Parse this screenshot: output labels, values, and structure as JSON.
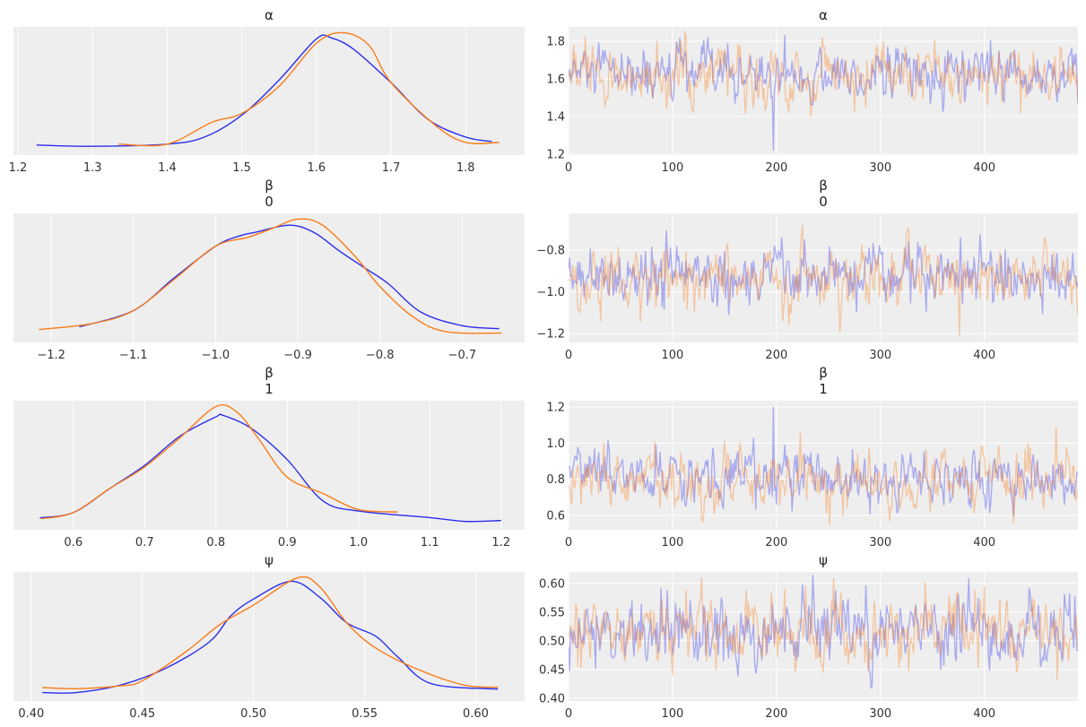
{
  "chart_data": {
    "type": "line",
    "style": {
      "panel_bg": "#eeeeee",
      "grid": "#ffffff",
      "grid_on": true,
      "chain_colors": [
        "#2a2eec",
        "#fa7c17"
      ],
      "trace_alpha": 0.35
    },
    "rows": [
      {
        "title": [
          "α"
        ],
        "kde": {
          "xlim": [
            1.194,
            1.879
          ],
          "xticks": [
            1.2,
            1.3,
            1.4,
            1.5,
            1.6,
            1.7,
            1.8
          ],
          "tick_labels": [
            "1.2",
            "1.3",
            "1.4",
            "1.5",
            "1.6",
            "1.7",
            "1.8"
          ],
          "y_units": "relative density",
          "chains": [
            {
              "x": [
                1.225,
                1.3,
                1.4,
                1.45,
                1.5,
                1.55,
                1.6,
                1.62,
                1.65,
                1.7,
                1.75,
                1.8,
                1.835
              ],
              "y": [
                0.015,
                0.004,
                0.023,
                0.085,
                0.277,
                0.585,
                0.946,
                0.954,
                0.854,
                0.562,
                0.238,
                0.085,
                0.046
              ]
            },
            {
              "x": [
                1.335,
                1.4,
                1.46,
                1.5,
                1.55,
                1.6,
                1.635,
                1.67,
                1.7,
                1.76,
                1.8,
                1.845
              ],
              "y": [
                0.023,
                0.023,
                0.215,
                0.292,
                0.531,
                0.908,
                1.0,
                0.892,
                0.562,
                0.185,
                0.038,
                0.038
              ]
            }
          ]
        },
        "trace": {
          "xlim": [
            0,
            490
          ],
          "xticks": [
            0,
            100,
            200,
            300,
            400
          ],
          "x_tick_labels": [
            "0",
            "100",
            "200",
            "300",
            "400"
          ],
          "ylim": [
            1.195,
            1.876
          ],
          "yticks": [
            1.2,
            1.4,
            1.6,
            1.8
          ],
          "y_tick_labels": [
            "1.2",
            "1.4",
            "1.6",
            "1.8"
          ],
          "chains": [
            {
              "mean": 1.62,
              "sd": 0.075,
              "spike": {
                "draw": 197,
                "value": 1.22
              }
            },
            {
              "mean": 1.615,
              "sd": 0.08
            }
          ]
        }
      },
      {
        "title": [
          "β",
          "0"
        ],
        "kde": {
          "xlim": [
            -1.246,
            -0.624
          ],
          "xticks": [
            -1.2,
            -1.1,
            -1.0,
            -0.9,
            -0.8,
            -0.7
          ],
          "tick_labels": [
            "−1.2",
            "−1.1",
            "−1.0",
            "−0.9",
            "−0.8",
            "−0.7"
          ],
          "y_units": "relative density",
          "chains": [
            {
              "x": [
                -1.166,
                -1.1,
                -1.05,
                -1.0,
                -0.97,
                -0.95,
                -0.91,
                -0.88,
                -0.85,
                -0.82,
                -0.79,
                -0.75,
                -0.7,
                -0.655
              ],
              "y": [
                0.063,
                0.204,
                0.491,
                0.765,
                0.856,
                0.888,
                0.948,
                0.883,
                0.726,
                0.582,
                0.439,
                0.19,
                0.073,
                0.047
              ]
            },
            {
              "x": [
                -1.215,
                -1.15,
                -1.1,
                -1.05,
                -1.0,
                -0.96,
                -0.93,
                -0.9,
                -0.87,
                -0.83,
                -0.8,
                -0.76,
                -0.72,
                -0.652
              ],
              "y": [
                0.039,
                0.091,
                0.204,
                0.478,
                0.765,
                0.843,
                0.922,
                1.0,
                0.948,
                0.674,
                0.413,
                0.151,
                0.021,
                0.008
              ]
            }
          ]
        },
        "trace": {
          "xlim": [
            0,
            490
          ],
          "xticks": [
            0,
            100,
            200,
            300,
            400
          ],
          "x_tick_labels": [
            "0",
            "100",
            "200",
            "300",
            "400"
          ],
          "ylim": [
            -1.243,
            -0.624
          ],
          "yticks": [
            -1.2,
            -1.0,
            -0.8
          ],
          "y_tick_labels": [
            "−1.2",
            "−1.0",
            "−0.8"
          ],
          "chains": [
            {
              "mean": -0.925,
              "sd": 0.075
            },
            {
              "mean": -0.93,
              "sd": 0.08,
              "spike": {
                "draw": 376,
                "value": -1.21
              }
            }
          ]
        }
      },
      {
        "title": [
          "β",
          "1"
        ],
        "kde": {
          "xlim": [
            0.516,
            1.233
          ],
          "xticks": [
            0.6,
            0.7,
            0.8,
            0.9,
            1.0,
            1.1,
            1.2
          ],
          "tick_labels": [
            "0.6",
            "0.7",
            "0.8",
            "0.9",
            "1.0",
            "1.1",
            "1.2"
          ],
          "y_units": "relative density",
          "chains": [
            {
              "x": [
                0.553,
                0.6,
                0.65,
                0.7,
                0.75,
                0.8,
                0.81,
                0.85,
                0.9,
                0.95,
                1.0,
                1.1,
                1.15,
                1.2
              ],
              "y": [
                0.031,
                0.077,
                0.282,
                0.487,
                0.744,
                0.91,
                0.923,
                0.808,
                0.538,
                0.179,
                0.09,
                0.033,
                0.0,
                0.008
              ]
            },
            {
              "x": [
                0.555,
                0.6,
                0.65,
                0.7,
                0.75,
                0.8,
                0.83,
                0.86,
                0.9,
                0.95,
                1.0,
                1.055
              ],
              "y": [
                0.023,
                0.077,
                0.282,
                0.474,
                0.731,
                1.0,
                0.949,
                0.718,
                0.385,
                0.244,
                0.103,
                0.082
              ]
            }
          ]
        },
        "trace": {
          "xlim": [
            0,
            490
          ],
          "xticks": [
            0,
            100,
            200,
            300,
            400
          ],
          "x_tick_labels": [
            "0",
            "100",
            "200",
            "300",
            "400"
          ],
          "ylim": [
            0.52,
            1.235
          ],
          "yticks": [
            0.6,
            0.8,
            1.0,
            1.2
          ],
          "y_tick_labels": [
            "0.6",
            "0.8",
            "1.0",
            "1.2"
          ],
          "chains": [
            {
              "mean": 0.81,
              "sd": 0.08,
              "spike": {
                "draw": 197,
                "value": 1.2
              }
            },
            {
              "mean": 0.8,
              "sd": 0.08
            }
          ]
        }
      },
      {
        "title": [
          "ψ"
        ],
        "kde": {
          "xlim": [
            0.392,
            0.622
          ],
          "xticks": [
            0.4,
            0.45,
            0.5,
            0.55,
            0.6
          ],
          "tick_labels": [
            "0.40",
            "0.45",
            "0.50",
            "0.55",
            "0.60"
          ],
          "y_units": "relative density",
          "chains": [
            {
              "x": [
                0.405,
                0.42,
                0.44,
                0.46,
                0.48,
                0.49,
                0.5,
                0.517,
                0.53,
                0.542,
                0.555,
                0.565,
                0.58,
                0.61
              ],
              "y": [
                0.0,
                0.0,
                0.065,
                0.207,
                0.439,
                0.672,
                0.814,
                0.969,
                0.827,
                0.607,
                0.491,
                0.31,
                0.078,
                0.031
              ]
            },
            {
              "x": [
                0.405,
                0.42,
                0.44,
                0.45,
                0.47,
                0.485,
                0.5,
                0.52,
                0.53,
                0.542,
                0.555,
                0.575,
                0.595,
                0.61
              ],
              "y": [
                0.044,
                0.034,
                0.059,
                0.103,
                0.362,
                0.594,
                0.762,
                1.0,
                0.917,
                0.607,
                0.388,
                0.194,
                0.065,
                0.047
              ]
            }
          ]
        },
        "trace": {
          "xlim": [
            0,
            490
          ],
          "xticks": [
            0,
            100,
            200,
            300,
            400
          ],
          "x_tick_labels": [
            "0",
            "100",
            "200",
            "300",
            "400"
          ],
          "ylim": [
            0.395,
            0.62
          ],
          "yticks": [
            0.4,
            0.45,
            0.5,
            0.55,
            0.6
          ],
          "y_tick_labels": [
            "0.40",
            "0.45",
            "0.50",
            "0.55",
            "0.60"
          ],
          "chains": [
            {
              "mean": 0.515,
              "sd": 0.032
            },
            {
              "mean": 0.515,
              "sd": 0.032
            }
          ]
        }
      }
    ]
  }
}
